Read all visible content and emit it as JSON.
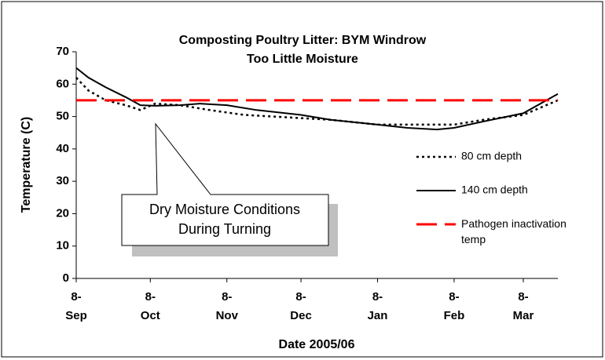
{
  "chart_data": {
    "type": "line",
    "title": "Composting Poultry Litter: BYM Windrow",
    "subtitle": "Too Little Moisture",
    "x_label": "Date 2005/06",
    "y_label": "Temperature (C)",
    "xlim": [
      "2005-09-08",
      "2006-03-22"
    ],
    "xticks": [
      {
        "value": "2005-09-08",
        "label": "8-Sep"
      },
      {
        "value": "2005-10-08",
        "label": "8-Oct"
      },
      {
        "value": "2005-11-08",
        "label": "8-Nov"
      },
      {
        "value": "2005-12-08",
        "label": "8-Dec"
      },
      {
        "value": "2006-01-08",
        "label": "8-Jan"
      },
      {
        "value": "2006-02-08",
        "label": "8-Feb"
      },
      {
        "value": "2006-03-08",
        "label": "8-Mar"
      }
    ],
    "ylim": [
      0,
      70
    ],
    "yticks": [
      0,
      10,
      20,
      30,
      40,
      50,
      60,
      70
    ],
    "annotation": [
      "Dry Moisture Conditions",
      "During Turning"
    ],
    "series": [
      {
        "name": "80 cm depth",
        "color": "#000000",
        "style": "dotted",
        "x": [
          "2005-09-08",
          "2005-09-13",
          "2005-09-20",
          "2005-09-28",
          "2005-10-04",
          "2005-10-10",
          "2005-10-20",
          "2005-11-01",
          "2005-11-15",
          "2005-12-08",
          "2005-12-20",
          "2006-01-08",
          "2006-01-20",
          "2006-02-08",
          "2006-02-20",
          "2006-03-08",
          "2006-03-22"
        ],
        "values": [
          62,
          58,
          55,
          53.5,
          52,
          54,
          53.5,
          52,
          50.5,
          49.5,
          49,
          47.5,
          47.5,
          47.5,
          49,
          50.5,
          55
        ]
      },
      {
        "name": "140 cm depth",
        "color": "#000000",
        "style": "solid",
        "x": [
          "2005-09-08",
          "2005-09-13",
          "2005-09-20",
          "2005-09-28",
          "2005-10-04",
          "2005-10-10",
          "2005-10-20",
          "2005-10-28",
          "2005-11-08",
          "2005-11-20",
          "2005-12-08",
          "2005-12-20",
          "2006-01-08",
          "2006-01-20",
          "2006-02-01",
          "2006-02-08",
          "2006-02-20",
          "2006-03-08",
          "2006-03-22"
        ],
        "values": [
          65,
          62,
          59,
          56,
          53.5,
          53.3,
          53.5,
          54,
          53.5,
          52,
          50.5,
          49,
          47.5,
          46.5,
          46,
          46.5,
          48.5,
          51,
          57
        ]
      },
      {
        "name": "Pathogen inactivation temp",
        "color": "#ff0000",
        "style": "dashed",
        "x": [
          "2005-09-08",
          "2006-03-22"
        ],
        "values": [
          55,
          55
        ]
      }
    ]
  }
}
